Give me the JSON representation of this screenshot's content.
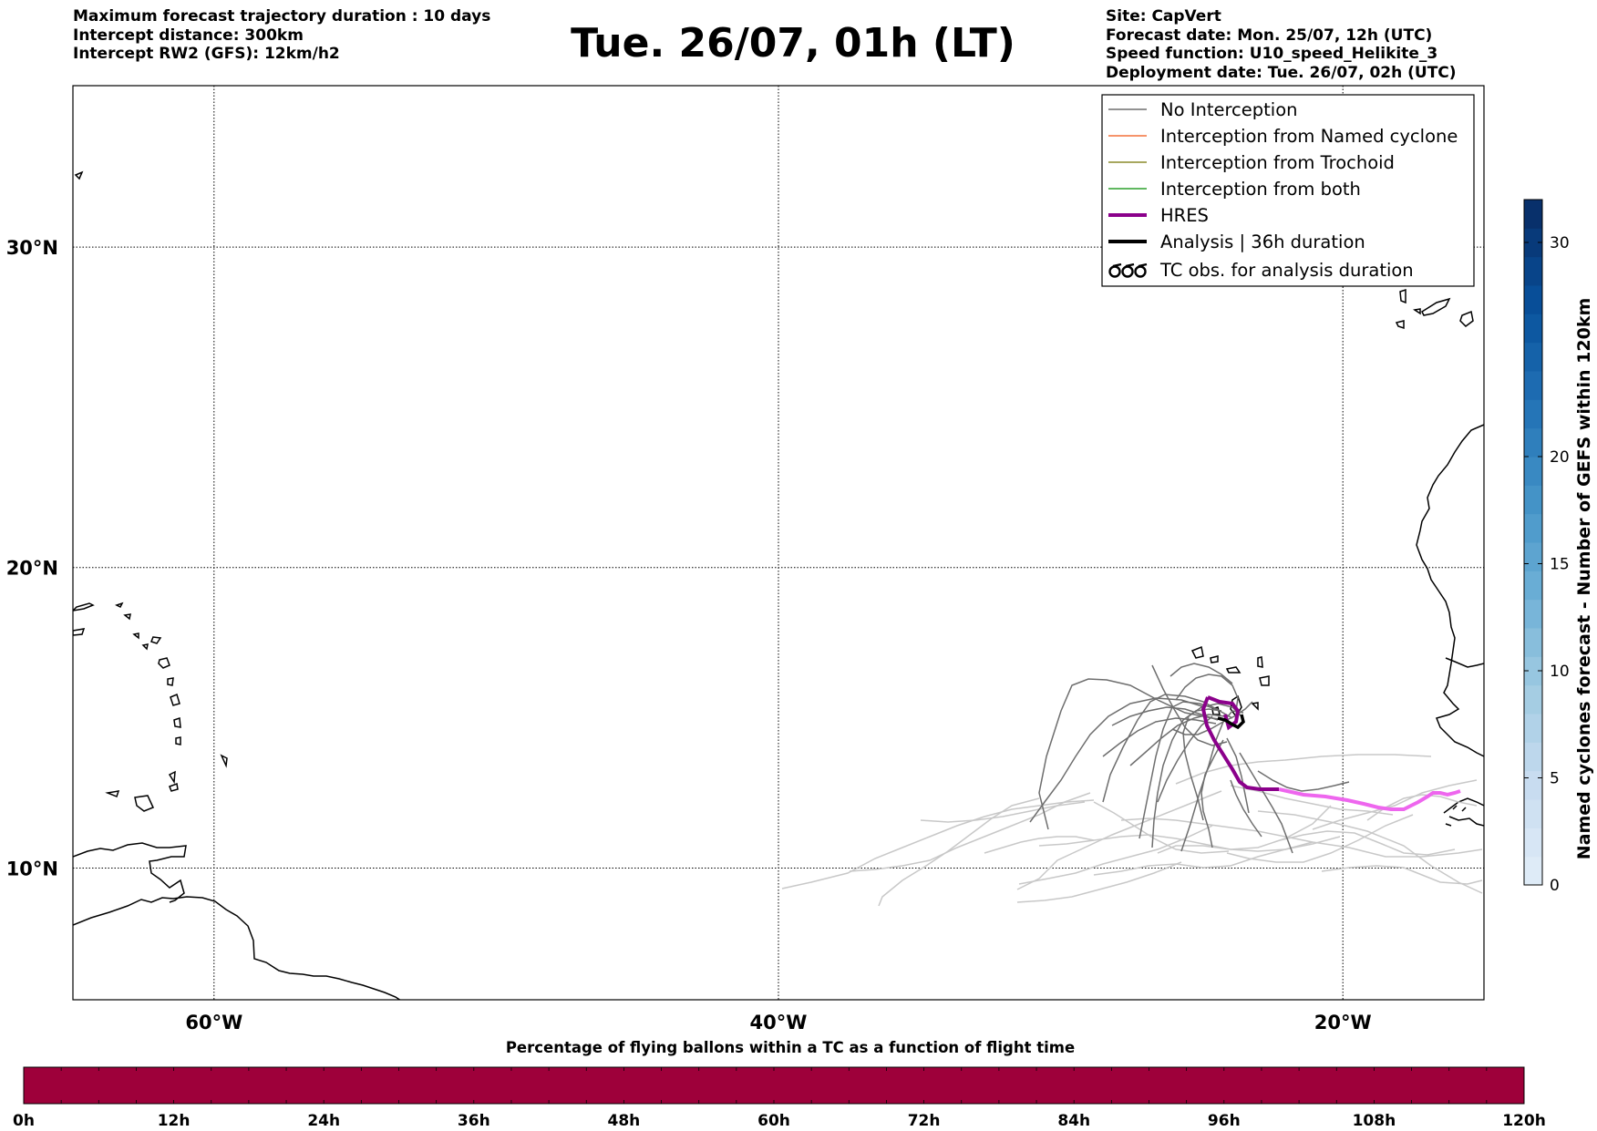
{
  "header": {
    "left_lines": [
      "Maximum forecast trajectory duration : 10 days",
      "Intercept distance: 300km",
      "Intercept RW2 (GFS):  12km/h2"
    ],
    "title": "Tue. 26/07, 01h (LT)",
    "right_lines": [
      "Site: CapVert",
      "Forecast date: Mon. 25/07, 12h (UTC)",
      "Speed function: U10_speed_Helikite_3",
      "Deployment date: Tue. 26/07, 02h (UTC)"
    ]
  },
  "map": {
    "lon_range": [
      -65,
      -15
    ],
    "lat_range": [
      5.5,
      34.7
    ],
    "lat_ticks": [
      {
        "value": 30,
        "label": "30°N"
      },
      {
        "value": 20,
        "label": "20°N"
      },
      {
        "value": 10,
        "label": "10°N"
      }
    ],
    "lon_ticks": [
      {
        "value": -60,
        "label": "60°W"
      },
      {
        "value": -40,
        "label": "40°W"
      },
      {
        "value": -20,
        "label": "20°W"
      }
    ],
    "colors": {
      "coast": "#000000",
      "no_interception": "#6e6e6e",
      "no_interception_light": "#c8c8c8",
      "named_cyclone": "#f4703a",
      "trochoid": "#8a8a2a",
      "both": "#2ca02c",
      "hres": "#8b008b",
      "hres_light": "#ee66ee",
      "analysis": "#000000"
    }
  },
  "legend": {
    "items": [
      {
        "label": "No Interception",
        "style": "no_interception"
      },
      {
        "label": "Interception from Named cyclone",
        "style": "named_cyclone"
      },
      {
        "label": "Interception from Trochoid",
        "style": "trochoid"
      },
      {
        "label": "Interception from both",
        "style": "both"
      },
      {
        "label": "HRES",
        "style": "hres"
      },
      {
        "label": "Analysis | 36h duration",
        "style": "analysis"
      },
      {
        "label": "TC obs. for analysis duration",
        "style": "tc_obs"
      }
    ]
  },
  "colorbar_right": {
    "label": "Named cyclones forecast - Number of GEFS within 120km",
    "min": 0,
    "max": 32,
    "ticks": [
      "0",
      "5",
      "10",
      "15",
      "20",
      "30"
    ],
    "tick_values": [
      0,
      5,
      10,
      15,
      20,
      30
    ],
    "colormap": "Blues"
  },
  "colorbar_bottom": {
    "title": "Percentage of flying ballons within a TC as a function of flight time",
    "ticks": [
      "0h",
      "12h",
      "24h",
      "36h",
      "48h",
      "60h",
      "72h",
      "84h",
      "96h",
      "108h",
      "120h"
    ],
    "fill_color": "#9e003a"
  }
}
